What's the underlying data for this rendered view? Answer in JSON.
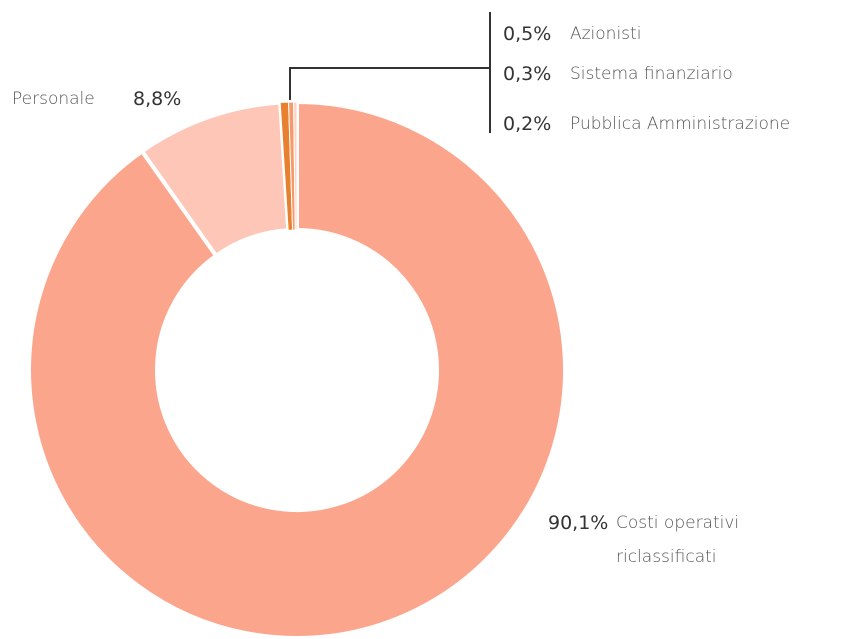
{
  "chart_data": {
    "type": "donut",
    "categories": [
      "Costi operativi riclassificati",
      "Personale",
      "Azionisti",
      "Sistema finanziario",
      "Pubblica Amministrazione"
    ],
    "values": [
      90.1,
      8.8,
      0.5,
      0.3,
      0.2
    ],
    "value_labels": [
      "90,1%",
      "8,8%",
      "0,5%",
      "0,3%",
      "0,2%"
    ],
    "colors": [
      "#fba68c",
      "#fec6b7",
      "#e8812f",
      "#f59a6a",
      "#fcd3c4"
    ]
  }
}
